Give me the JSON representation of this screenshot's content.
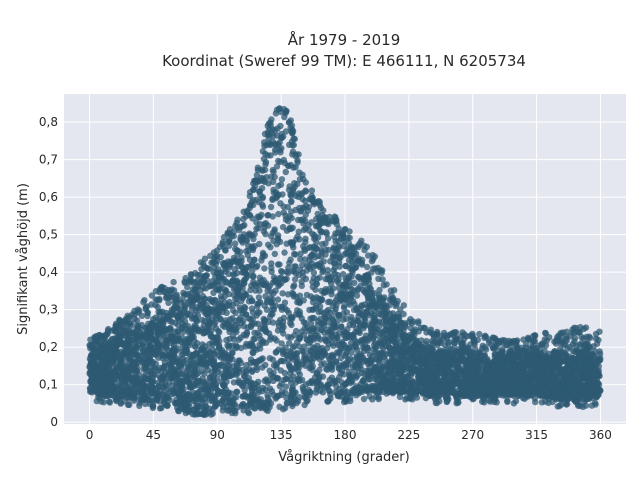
{
  "chart_data": {
    "type": "scatter",
    "title_lines": [
      "År 1979 - 2019",
      "Koordinat (Sweref 99 TM): E 466111, N 6205734"
    ],
    "xlabel": "Vågriktning (grader)",
    "ylabel": "Signifikant våghöjd (m)",
    "xlim": [
      -18,
      378
    ],
    "ylim": [
      -0.005,
      0.875
    ],
    "x_ticks": [
      0,
      45,
      90,
      135,
      180,
      225,
      270,
      315,
      360
    ],
    "y_ticks": [
      0,
      0.1,
      0.2,
      0.3,
      0.4,
      0.5,
      0.6,
      0.7,
      0.8
    ],
    "y_tick_labels": [
      "0",
      "0,1",
      "0,2",
      "0,3",
      "0,4",
      "0,5",
      "0,6",
      "0,7",
      "0,8"
    ],
    "grid": true,
    "background_color": "#e5e7f0",
    "marker_color": "#2e5a73",
    "envelope": {
      "x": [
        0,
        10,
        20,
        30,
        40,
        50,
        60,
        70,
        80,
        90,
        100,
        110,
        120,
        125,
        130,
        135,
        140,
        145,
        150,
        160,
        170,
        180,
        190,
        200,
        210,
        220,
        230,
        240,
        250,
        260,
        270,
        280,
        290,
        300,
        310,
        320,
        330,
        340,
        350,
        360
      ],
      "y_min": [
        0.08,
        0.07,
        0.07,
        0.06,
        0.06,
        0.05,
        0.05,
        0.04,
        0.03,
        0.04,
        0.04,
        0.04,
        0.05,
        0.05,
        0.05,
        0.05,
        0.06,
        0.06,
        0.06,
        0.07,
        0.07,
        0.07,
        0.08,
        0.08,
        0.08,
        0.08,
        0.08,
        0.07,
        0.07,
        0.07,
        0.07,
        0.07,
        0.07,
        0.07,
        0.07,
        0.07,
        0.06,
        0.06,
        0.06,
        0.07
      ],
      "y_max": [
        0.22,
        0.24,
        0.27,
        0.3,
        0.33,
        0.36,
        0.38,
        0.4,
        0.44,
        0.47,
        0.52,
        0.58,
        0.72,
        0.79,
        0.83,
        0.84,
        0.83,
        0.77,
        0.66,
        0.6,
        0.56,
        0.52,
        0.49,
        0.45,
        0.38,
        0.32,
        0.28,
        0.25,
        0.24,
        0.24,
        0.24,
        0.23,
        0.22,
        0.22,
        0.23,
        0.24,
        0.24,
        0.25,
        0.26,
        0.24
      ],
      "dense_top": [
        0.2,
        0.21,
        0.23,
        0.25,
        0.27,
        0.29,
        0.31,
        0.33,
        0.36,
        0.4,
        0.44,
        0.5,
        0.64,
        0.74,
        0.81,
        0.82,
        0.8,
        0.7,
        0.61,
        0.56,
        0.52,
        0.47,
        0.43,
        0.36,
        0.3,
        0.25,
        0.22,
        0.2,
        0.19,
        0.19,
        0.19,
        0.18,
        0.18,
        0.18,
        0.18,
        0.19,
        0.19,
        0.19,
        0.2,
        0.19
      ]
    }
  }
}
